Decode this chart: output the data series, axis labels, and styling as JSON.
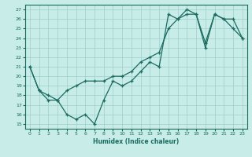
{
  "xlabel": "Humidex (Indice chaleur)",
  "xlim": [
    -0.5,
    23.5
  ],
  "ylim": [
    14.5,
    27.5
  ],
  "xticks": [
    0,
    1,
    2,
    3,
    4,
    5,
    6,
    7,
    8,
    9,
    10,
    11,
    12,
    13,
    14,
    15,
    16,
    17,
    18,
    19,
    20,
    21,
    22,
    23
  ],
  "yticks": [
    15,
    16,
    17,
    18,
    19,
    20,
    21,
    22,
    23,
    24,
    25,
    26,
    27
  ],
  "bg_color": "#c8ece8",
  "grid_color": "#9ececa",
  "line_color": "#1a6b60",
  "line1_x": [
    0,
    1,
    2,
    3,
    4,
    5,
    6,
    7,
    8,
    9,
    10,
    11,
    12,
    13,
    14,
    15,
    16,
    17,
    18,
    19,
    20,
    21,
    22,
    23
  ],
  "line1_y": [
    21,
    18.5,
    17.5,
    17.5,
    16,
    15.5,
    16,
    15,
    17.5,
    19.5,
    19,
    19.5,
    20.5,
    21.5,
    21,
    26.5,
    26,
    27,
    26.5,
    23,
    26.5,
    26,
    25,
    24
  ],
  "line2_x": [
    0,
    1,
    2,
    3,
    4,
    5,
    6,
    7,
    8,
    9,
    10,
    11,
    12,
    13,
    14,
    15,
    16,
    17,
    18,
    19,
    20,
    21,
    22,
    23
  ],
  "line2_y": [
    21,
    18.5,
    18,
    17.5,
    18.5,
    19,
    19.5,
    19.5,
    19.5,
    20,
    20,
    20.5,
    21.5,
    22,
    22.5,
    25,
    26,
    26.5,
    26.5,
    23.5,
    26.5,
    26,
    26,
    24
  ],
  "marker": "+"
}
